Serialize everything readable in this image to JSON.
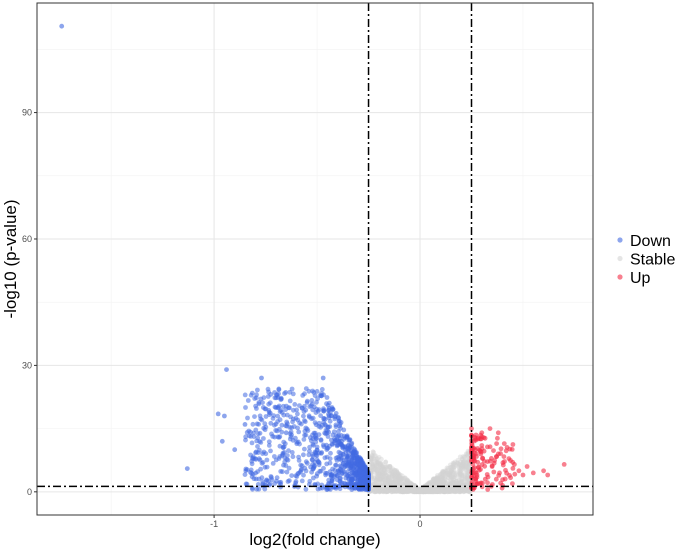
{
  "chart_data": {
    "type": "scatter",
    "title": "",
    "xlabel": "log2(fold change)",
    "ylabel": "-log10 (p-value)",
    "xlim": [
      -1.86,
      0.84
    ],
    "ylim": [
      -5.5,
      116
    ],
    "x_ticks": [
      {
        "value": -1,
        "label": "-1"
      },
      {
        "value": 0,
        "label": "0"
      }
    ],
    "x_minor_gridlines": [
      -1.5,
      -0.5,
      0.5
    ],
    "y_ticks": [
      {
        "value": 0,
        "label": "0"
      },
      {
        "value": 30,
        "label": "30"
      },
      {
        "value": 60,
        "label": "60"
      },
      {
        "value": 90,
        "label": "90"
      }
    ],
    "y_minor_gridlines": [
      15,
      45,
      75,
      105
    ],
    "grid": true,
    "thresholds": {
      "vertical": [
        -0.25,
        0.25
      ],
      "horizontal": [
        1.3
      ]
    },
    "legend": {
      "position": "right"
    },
    "series": [
      {
        "name": "Down",
        "color": "#4169E1",
        "notable_points": [
          [
            -1.74,
            110.5
          ],
          [
            -1.13,
            5.5
          ],
          [
            -0.94,
            29
          ],
          [
            -0.77,
            27
          ],
          [
            -0.98,
            18.5
          ],
          [
            -0.95,
            18
          ],
          [
            -0.96,
            12
          ],
          [
            -0.47,
            27
          ],
          [
            -0.9,
            10
          ],
          [
            -0.85,
            16
          ],
          [
            -0.7,
            20
          ],
          [
            -0.65,
            14
          ]
        ]
      },
      {
        "name": "Stable",
        "color": "#D3D3D3"
      },
      {
        "name": "Up",
        "color": "#F42C44",
        "notable_points": [
          [
            0.25,
            15
          ],
          [
            0.3,
            14
          ],
          [
            0.34,
            15
          ],
          [
            0.38,
            14
          ],
          [
            0.38,
            9
          ],
          [
            0.45,
            7
          ],
          [
            0.48,
            5
          ],
          [
            0.52,
            6
          ],
          [
            0.5,
            4
          ],
          [
            0.55,
            4.5
          ],
          [
            0.62,
            4
          ],
          [
            0.6,
            5
          ],
          [
            0.7,
            6.5
          ],
          [
            0.3,
            11
          ],
          [
            0.28,
            7
          ],
          [
            0.35,
            6
          ],
          [
            0.27,
            3
          ],
          [
            0.33,
            3.5
          ]
        ]
      }
    ]
  },
  "legend_items": [
    {
      "name": "Down",
      "color": "#4169E1"
    },
    {
      "name": "Stable",
      "color": "#D3D3D3"
    },
    {
      "name": "Up",
      "color": "#F42C44"
    }
  ]
}
